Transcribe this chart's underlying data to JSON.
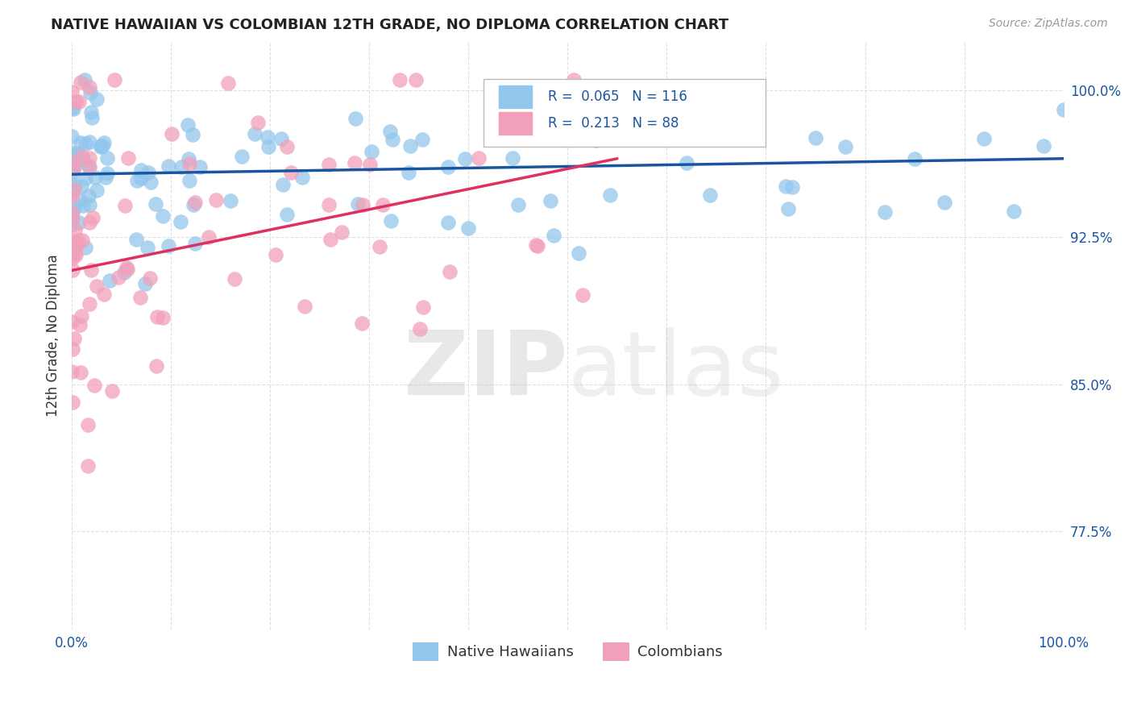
{
  "title": "NATIVE HAWAIIAN VS COLOMBIAN 12TH GRADE, NO DIPLOMA CORRELATION CHART",
  "source": "Source: ZipAtlas.com",
  "ylabel": "12th Grade, No Diploma",
  "xlim": [
    0.0,
    1.0
  ],
  "ylim": [
    0.725,
    1.025
  ],
  "ytick_vals": [
    0.775,
    0.85,
    0.925,
    1.0
  ],
  "ytick_labels": [
    "77.5%",
    "85.0%",
    "92.5%",
    "100.0%"
  ],
  "xtick_vals": [
    0.0,
    0.1,
    0.2,
    0.3,
    0.4,
    0.5,
    0.6,
    0.7,
    0.8,
    0.9,
    1.0
  ],
  "xtick_labels": [
    "0.0%",
    "",
    "",
    "",
    "",
    "",
    "",
    "",
    "",
    "",
    "100.0%"
  ],
  "hawaiian_color": "#93C6EC",
  "colombian_color": "#F2A0BA",
  "hawaiian_line_color": "#1A56A0",
  "colombian_line_color": "#E03060",
  "legend_r_hawaiian": "0.065",
  "legend_n_hawaiian": "116",
  "legend_r_colombian": "0.213",
  "legend_n_colombian": "88",
  "watermark_zip": "ZIP",
  "watermark_atlas": "atlas",
  "background_color": "#FFFFFF",
  "grid_color": "#DDDDDD",
  "hawaiian_line_x": [
    0.0,
    1.0
  ],
  "hawaiian_line_y": [
    0.957,
    0.965
  ],
  "colombian_line_x": [
    0.0,
    0.55
  ],
  "colombian_line_y": [
    0.908,
    0.965
  ]
}
